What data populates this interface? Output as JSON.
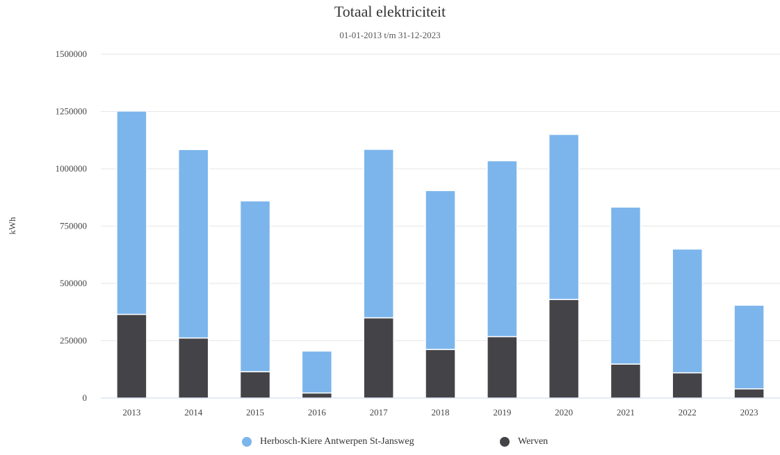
{
  "chart_data": {
    "type": "bar",
    "stacked": true,
    "title": "Totaal elektriciteit",
    "subtitle": "01-01-2013 t/m 31-12-2023",
    "xlabel": "",
    "ylabel": "kWh",
    "ylim": [
      0,
      1500000
    ],
    "yticks": [
      "0",
      "250000",
      "500000",
      "750000",
      "1000000",
      "1250000",
      "1500000"
    ],
    "categories": [
      "2013",
      "2014",
      "2015",
      "2016",
      "2017",
      "2018",
      "2019",
      "2020",
      "2021",
      "2022",
      "2023"
    ],
    "series": [
      {
        "name": "Werven",
        "color": "#434348",
        "values": [
          365000,
          262000,
          115000,
          22000,
          350000,
          212000,
          268000,
          430000,
          148000,
          110000,
          40000
        ]
      },
      {
        "name": "Herbosch-Kiere Antwerpen St-Jansweg",
        "color": "#7cb5ec",
        "values": [
          887000,
          822000,
          745000,
          183000,
          735000,
          693000,
          767000,
          720000,
          685000,
          540000,
          365000
        ]
      }
    ],
    "grid": true,
    "legend_position": "bottom"
  }
}
